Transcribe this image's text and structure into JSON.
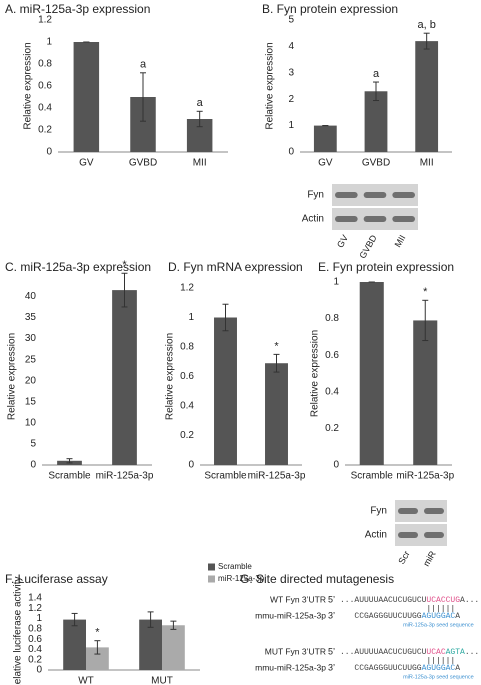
{
  "chart_data": [
    {
      "type": "bar",
      "title": "A. miR-125a-3p expression",
      "y_label": "Relative expression",
      "categories": [
        "GV",
        "GVBD",
        "MII"
      ],
      "values": [
        1,
        0.5,
        0.3
      ],
      "errors": [
        0,
        0.22,
        0.07
      ],
      "color": "#555555",
      "ylim": [
        0,
        1.2
      ],
      "yticks": [
        0,
        0.2,
        0.4,
        0.6,
        0.8,
        1,
        1.2
      ],
      "annotations": [
        {
          "category": "GVBD",
          "text": "a"
        },
        {
          "category": "MII",
          "text": "a"
        }
      ]
    },
    {
      "type": "bar",
      "title": "B. Fyn protein expression",
      "y_label": "Relative expression",
      "categories": [
        "GV",
        "GVBD",
        "MII"
      ],
      "values": [
        1,
        2.3,
        4.2
      ],
      "errors": [
        0,
        0.35,
        0.3
      ],
      "color": "#555555",
      "ylim": [
        0,
        5
      ],
      "yticks": [
        0,
        1,
        2,
        3,
        4,
        5
      ],
      "annotations": [
        {
          "category": "GVBD",
          "text": "a"
        },
        {
          "category": "MII",
          "text": "a, b"
        }
      ],
      "blot": {
        "rows": [
          "Fyn",
          "Actin"
        ],
        "lanes": [
          "GV",
          "GVBD",
          "MII"
        ]
      }
    },
    {
      "type": "bar",
      "title": "C. miR-125a-3p expression",
      "y_label": "Relative expression",
      "categories": [
        "Scramble",
        "miR-125a-3p"
      ],
      "values": [
        1,
        41.5
      ],
      "errors": [
        0.5,
        4
      ],
      "color": "#555555",
      "ylim": [
        0,
        42
      ],
      "yticks": [
        0,
        5,
        10,
        15,
        20,
        25,
        30,
        35,
        40
      ],
      "annotations": [
        {
          "category": "miR-125a-3p",
          "text": "*"
        }
      ]
    },
    {
      "type": "bar",
      "title": "D. Fyn mRNA expression",
      "y_label": "Relative expression",
      "categories": [
        "Scramble",
        "miR-125a-3p"
      ],
      "values": [
        1,
        0.69
      ],
      "errors": [
        0.09,
        0.06
      ],
      "color": "#555555",
      "ylim": [
        0,
        1.2
      ],
      "yticks": [
        0,
        0.2,
        0.4,
        0.6,
        0.8,
        1,
        1.2
      ],
      "annotations": [
        {
          "category": "miR-125a-3p",
          "text": "*"
        }
      ]
    },
    {
      "type": "bar",
      "title": "E. Fyn protein expression",
      "y_label": "Relative expression",
      "categories": [
        "Scramble",
        "miR-125a-3p"
      ],
      "values": [
        1,
        0.79
      ],
      "errors": [
        0,
        0.11
      ],
      "color": "#555555",
      "ylim": [
        0,
        1
      ],
      "yticks": [
        0,
        0.2,
        0.4,
        0.6,
        0.8,
        1
      ],
      "annotations": [
        {
          "category": "miR-125a-3p",
          "text": "*"
        }
      ],
      "blot": {
        "rows": [
          "Fyn",
          "Actin"
        ],
        "lanes": [
          "Scr",
          "miR"
        ]
      }
    },
    {
      "type": "bar",
      "title": "F. Luciferase assay",
      "y_label": "Relative luciferase activity",
      "categories": [
        "WT",
        "MUT"
      ],
      "series": [
        {
          "name": "Scramble",
          "color": "#555555",
          "values": [
            0.98,
            0.98
          ],
          "errors": [
            0.12,
            0.15
          ]
        },
        {
          "name": "miR-125a-3p",
          "color": "#aaaaaa",
          "values": [
            0.44,
            0.87
          ],
          "errors": [
            0.13,
            0.08
          ]
        }
      ],
      "ylim": [
        0,
        1.4
      ],
      "yticks": [
        0,
        0.2,
        0.4,
        0.6,
        0.8,
        1,
        1.2,
        1.4
      ],
      "legend": "top-right",
      "annotations": [
        {
          "category": "WT",
          "series": "miR-125a-3p",
          "text": "*"
        }
      ]
    }
  ],
  "mutagenesis": {
    "title": "G. Site directed mutagenesis",
    "seed_note": "miR-125a-3p seed sequence",
    "pairs": [
      {
        "target_label": "WT Fyn 3’UTR",
        "target_end": "5’",
        "target": [
          "...AUUUUAACUCUGUCU",
          "UCACCUG",
          "A..."
        ],
        "target_colors": [
          "#444444",
          "#e0508a",
          "#444444"
        ],
        "mirna_label": "mmu-miR-125a-3p",
        "mirna_end": "3’",
        "mirna": [
          "CCGAGGGUUCUUGG",
          "AGUGGAC",
          "A"
        ],
        "mirna_colors": [
          "#444444",
          "#3a8fd0",
          "#444444"
        ]
      },
      {
        "target_label": "MUT Fyn 3’UTR",
        "target_end": "5’",
        "target": [
          "...AUUUUAACUCUGUCU",
          "UCAC",
          "AGTA",
          "..."
        ],
        "target_colors": [
          "#444444",
          "#e0508a",
          "#2aa8a0",
          "#444444"
        ],
        "mirna_label": "mmu-miR-125a-3p",
        "mirna_end": "3’",
        "mirna": [
          "CCGAGGGUUCUUGG",
          "AGUGGAC",
          "A"
        ],
        "mirna_colors": [
          "#444444",
          "#3a8fd0",
          "#444444"
        ]
      }
    ]
  }
}
